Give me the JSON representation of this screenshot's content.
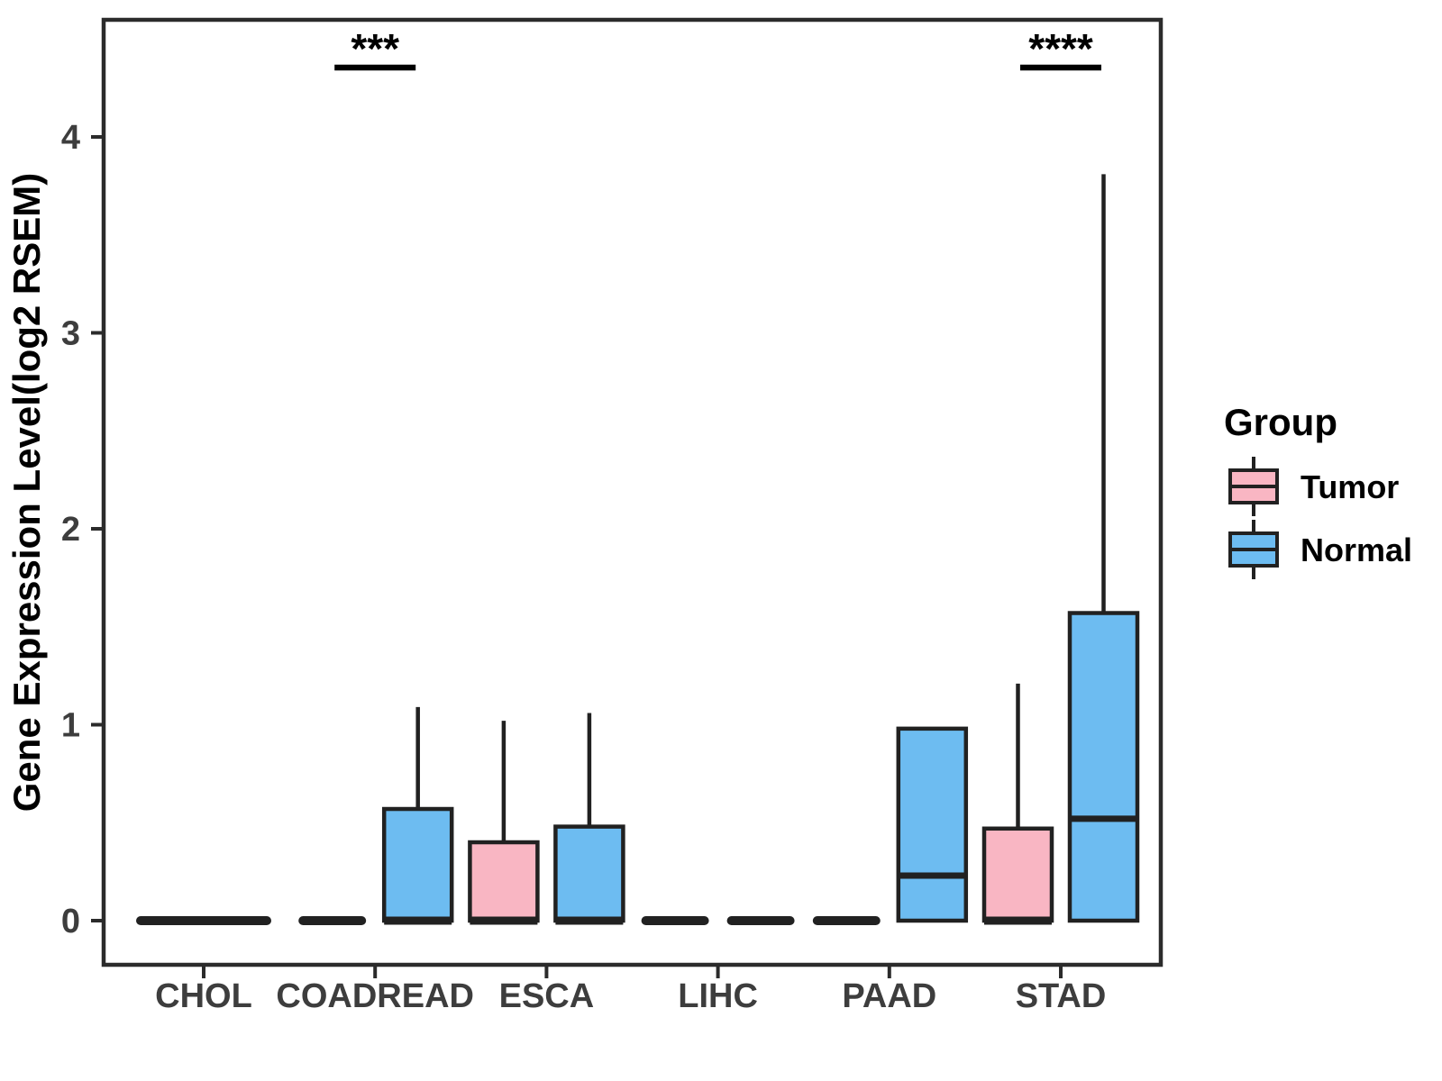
{
  "y_axis": {
    "label": "Gene Expression Level(log2 RSEM)",
    "ticks": [
      "0",
      "1",
      "2",
      "3",
      "4"
    ],
    "range": [
      0,
      4
    ]
  },
  "x_axis": {
    "categories": [
      "CHOL",
      "COADREAD",
      "ESCA",
      "LIHC",
      "PAAD",
      "STAD"
    ]
  },
  "legend": {
    "title": "Group",
    "items": [
      {
        "label": "Tumor",
        "color": "#F9B6C3"
      },
      {
        "label": "Normal",
        "color": "#6DBCF1"
      }
    ]
  },
  "annotations": [
    {
      "category": "COADREAD",
      "text": "***"
    },
    {
      "category": "STAD",
      "text": "****"
    }
  ],
  "chart_data": {
    "type": "boxplot",
    "title": "",
    "xlabel": "",
    "ylabel": "Gene Expression Level(log2 RSEM)",
    "ylim": [
      0,
      4
    ],
    "grid": false,
    "legend_position": "right",
    "series": [
      "Tumor",
      "Normal"
    ],
    "series_colors": {
      "Tumor": "#F9B6C3",
      "Normal": "#6DBCF1"
    },
    "boxes": [
      {
        "category": "CHOL",
        "group": "Both",
        "q1": 0,
        "median": 0,
        "q3": 0,
        "whisker_low": 0,
        "whisker_high": 0,
        "wide": true
      },
      {
        "category": "COADREAD",
        "group": "Tumor",
        "q1": 0,
        "median": 0,
        "q3": 0,
        "whisker_low": 0,
        "whisker_high": 0
      },
      {
        "category": "COADREAD",
        "group": "Normal",
        "q1": 0,
        "median": 0,
        "q3": 0.57,
        "whisker_low": 0,
        "whisker_high": 1.09
      },
      {
        "category": "ESCA",
        "group": "Tumor",
        "q1": 0,
        "median": 0,
        "q3": 0.4,
        "whisker_low": 0,
        "whisker_high": 1.02
      },
      {
        "category": "ESCA",
        "group": "Normal",
        "q1": 0,
        "median": 0,
        "q3": 0.48,
        "whisker_low": 0,
        "whisker_high": 1.06
      },
      {
        "category": "LIHC",
        "group": "Tumor",
        "q1": 0,
        "median": 0,
        "q3": 0,
        "whisker_low": 0,
        "whisker_high": 0
      },
      {
        "category": "LIHC",
        "group": "Normal",
        "q1": 0,
        "median": 0,
        "q3": 0,
        "whisker_low": 0,
        "whisker_high": 0
      },
      {
        "category": "PAAD",
        "group": "Tumor",
        "q1": 0,
        "median": 0,
        "q3": 0,
        "whisker_low": 0,
        "whisker_high": 0
      },
      {
        "category": "PAAD",
        "group": "Normal",
        "q1": 0,
        "median": 0.23,
        "q3": 0.98,
        "whisker_low": 0,
        "whisker_high": null
      },
      {
        "category": "STAD",
        "group": "Tumor",
        "q1": 0,
        "median": 0,
        "q3": 0.47,
        "whisker_low": 0,
        "whisker_high": 1.21
      },
      {
        "category": "STAD",
        "group": "Normal",
        "q1": 0,
        "median": 0.52,
        "q3": 1.57,
        "whisker_low": 0,
        "whisker_high": 3.81
      }
    ]
  },
  "colors": {
    "box_line": "#212121",
    "panel_border": "#2b2b2b",
    "axis_text": "#3d3d3d",
    "title_text": "#000000",
    "background": "#ffffff"
  }
}
